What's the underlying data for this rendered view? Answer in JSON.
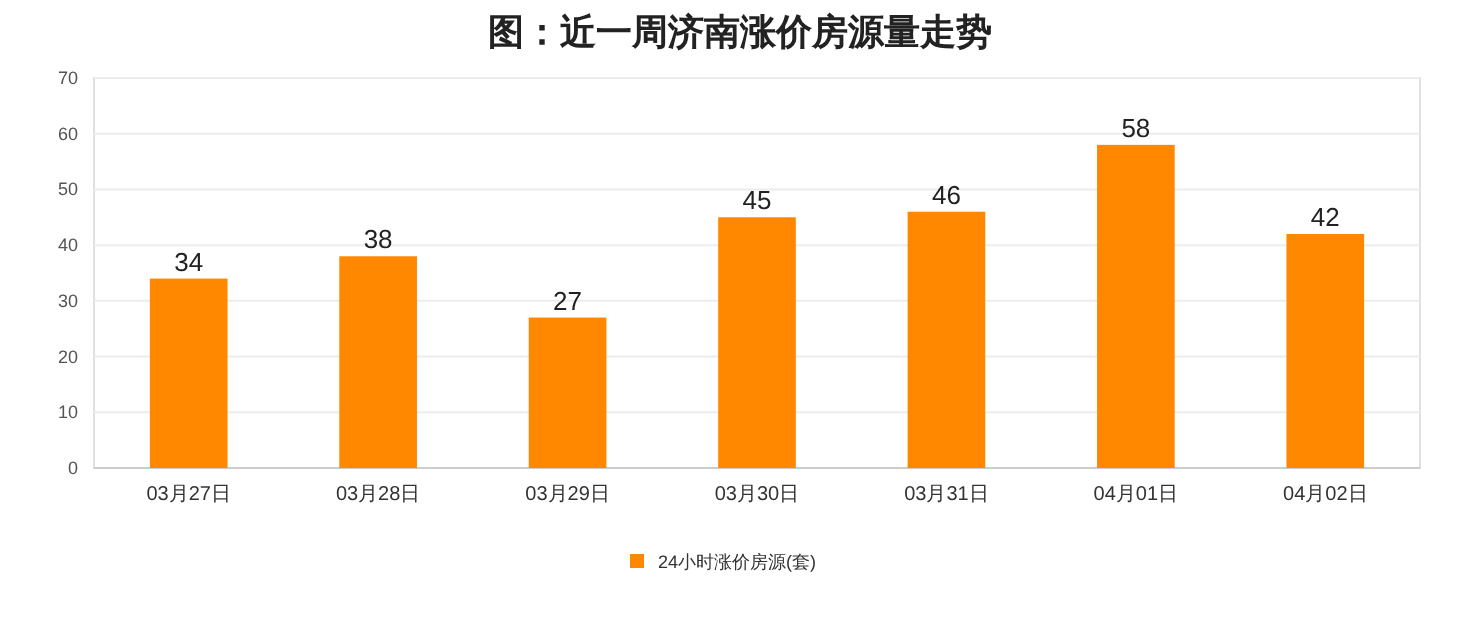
{
  "chart_data": {
    "type": "bar",
    "title": "图：近一周济南涨价房源量走势",
    "categories": [
      "03月27日",
      "03月28日",
      "03月29日",
      "03月30日",
      "03月31日",
      "04月01日",
      "04月02日"
    ],
    "series": [
      {
        "name": "24小时涨价房源(套)",
        "color": "#ff8800",
        "values": [
          34,
          38,
          27,
          45,
          46,
          58,
          42
        ]
      }
    ],
    "ylim": [
      0,
      70
    ],
    "yticks": [
      0,
      10,
      20,
      30,
      40,
      50,
      60,
      70
    ],
    "grid": "y",
    "legend": "bottom",
    "data_labels": true
  }
}
